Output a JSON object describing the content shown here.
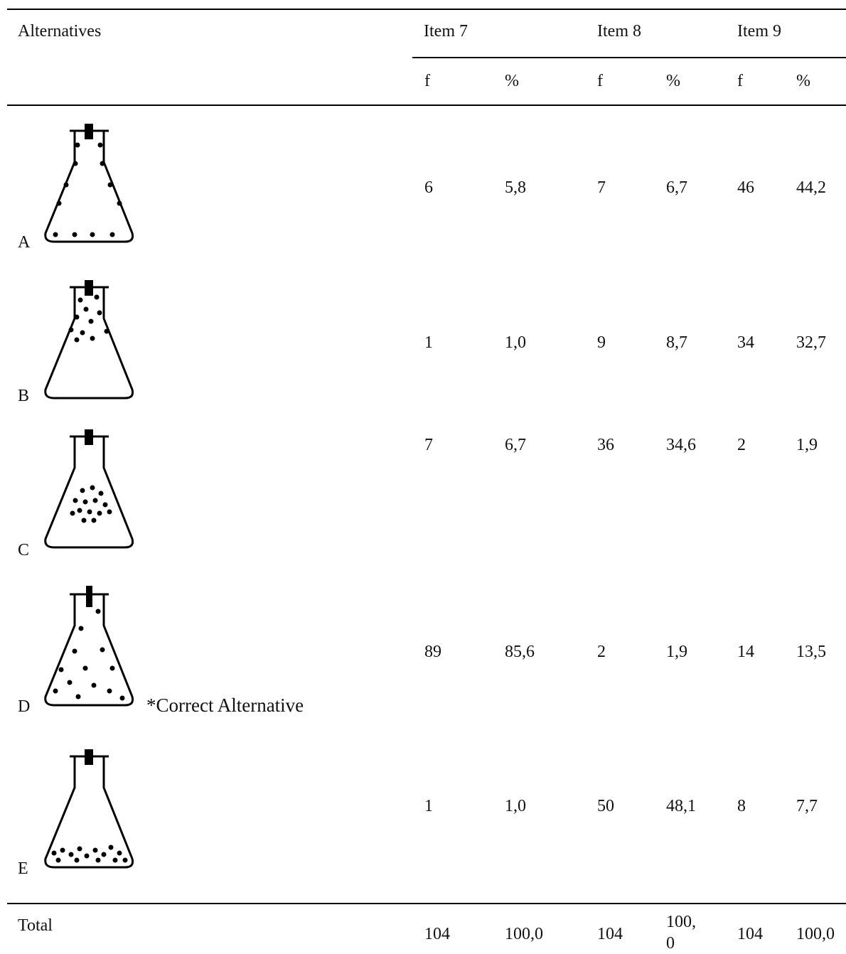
{
  "header": {
    "alternatives": "Alternatives",
    "items": [
      "Item 7",
      "Item 8",
      "Item 9"
    ],
    "sub": [
      "f",
      "%",
      "f",
      "%",
      "f",
      "%"
    ]
  },
  "rows": [
    {
      "letter": "A",
      "note": "",
      "values": [
        "6",
        "5,8",
        "7",
        "6,7",
        "46",
        "44,2"
      ]
    },
    {
      "letter": "B",
      "note": "",
      "values": [
        "1",
        "1,0",
        "9",
        "8,7",
        "34",
        "32,7"
      ]
    },
    {
      "letter": "C",
      "note": "",
      "values": [
        "7",
        "6,7",
        "36",
        "34,6",
        "2",
        "1,9"
      ]
    },
    {
      "letter": "D",
      "note": "*Correct Alternative",
      "values": [
        "89",
        "85,6",
        "2",
        "1,9",
        "14",
        "13,5"
      ]
    },
    {
      "letter": "E",
      "note": "",
      "values": [
        "1",
        "1,0",
        "50",
        "48,1",
        "8",
        "7,7"
      ]
    }
  ],
  "total": {
    "label": "Total",
    "values": [
      "104",
      "100,0",
      "104",
      "100,0",
      "104",
      "100,0"
    ],
    "wrapped_third_pct": [
      "100,",
      "0"
    ]
  },
  "icons": [
    "flask-walls-icon",
    "flask-top-icon",
    "flask-middle-icon",
    "flask-spread-icon",
    "flask-bottom-icon"
  ]
}
